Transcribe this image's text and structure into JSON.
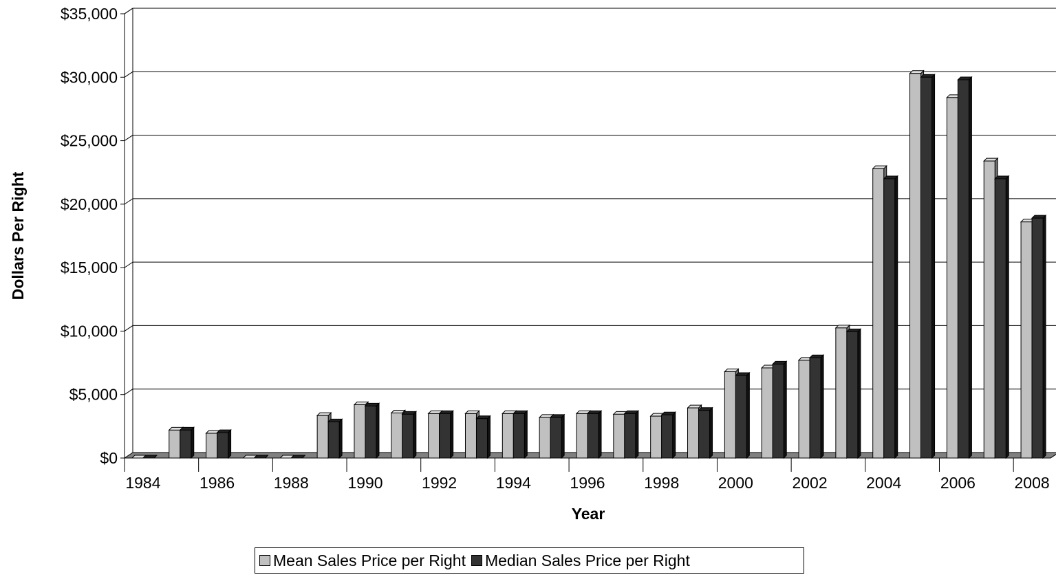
{
  "chart_data": {
    "type": "bar",
    "title": "",
    "xlabel": "Year",
    "ylabel": "Dollars Per Right",
    "ylim": [
      0,
      35000
    ],
    "yticks": [
      0,
      5000,
      10000,
      15000,
      20000,
      25000,
      30000,
      35000
    ],
    "ytick_labels": [
      "$0",
      "$5,000",
      "$10,000",
      "$15,000",
      "$20,000",
      "$25,000",
      "$30,000",
      "$35,000"
    ],
    "categories": [
      1984,
      1985,
      1986,
      1987,
      1988,
      1989,
      1990,
      1991,
      1992,
      1993,
      1994,
      1995,
      1996,
      1997,
      1998,
      1999,
      2000,
      2001,
      2002,
      2003,
      2004,
      2005,
      2006,
      2007,
      2008
    ],
    "xtick_labels": [
      "1984",
      "1986",
      "1988",
      "1990",
      "1992",
      "1994",
      "1996",
      "1998",
      "2000",
      "2002",
      "2004",
      "2006",
      "2008"
    ],
    "series": [
      {
        "name": "Mean Sales Price per Right",
        "color": "#c0c0c0",
        "values": [
          0,
          2200,
          1950,
          0,
          0,
          3350,
          4200,
          3550,
          3500,
          3500,
          3500,
          3200,
          3500,
          3450,
          3300,
          3950,
          6800,
          7100,
          7700,
          10250,
          22800,
          30300,
          28400,
          23400,
          18600
        ]
      },
      {
        "name": "Median Sales Price per Right",
        "color": "#333333",
        "values": [
          0,
          2200,
          2000,
          0,
          0,
          2850,
          4100,
          3450,
          3500,
          3100,
          3500,
          3200,
          3500,
          3500,
          3400,
          3750,
          6500,
          7400,
          7900,
          9950,
          22000,
          30000,
          29800,
          22000,
          18900
        ]
      }
    ],
    "grid": true,
    "legend_position": "bottom"
  }
}
